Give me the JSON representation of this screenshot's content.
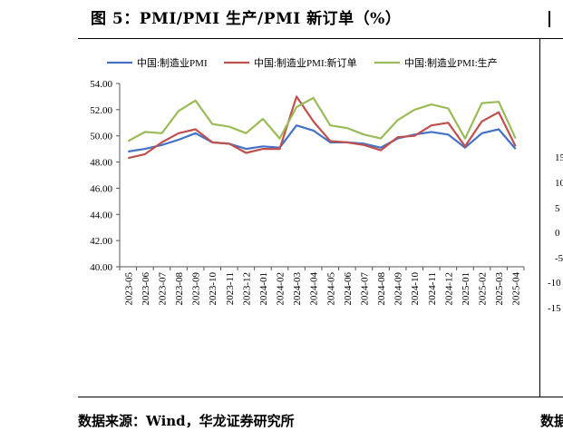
{
  "title": "图 5：PMI/PMI 生产/PMI 新订单（%）",
  "source": "数据来源：Wind，华龙证券研究所",
  "right_partial": {
    "source_fragment": "数据",
    "tick_fragments": [
      "15",
      "10",
      "5",
      "0",
      "-5",
      "-10",
      "-15"
    ]
  },
  "chart_data": {
    "type": "line",
    "categories": [
      "2023-05",
      "2023-06",
      "2023-07",
      "2023-08",
      "2023-09",
      "2023-10",
      "2023-11",
      "2023-12",
      "2024-01",
      "2024-02",
      "2024-03",
      "2024-04",
      "2024-05",
      "2024-06",
      "2024-07",
      "2024-08",
      "2024-09",
      "2024-10",
      "2024-11",
      "2024-12",
      "2025-01",
      "2025-02",
      "2025-03",
      "2025-04"
    ],
    "ylim": [
      40,
      54
    ],
    "yticks": [
      "40.00",
      "42.00",
      "44.00",
      "46.00",
      "48.00",
      "50.00",
      "52.00",
      "54.00"
    ],
    "legend_position": "top",
    "series": [
      {
        "name": "中国:制造业PMI",
        "color": "#4472C4",
        "values": [
          48.8,
          49.0,
          49.3,
          49.7,
          50.2,
          49.5,
          49.4,
          49.0,
          49.2,
          49.1,
          50.8,
          50.4,
          49.5,
          49.5,
          49.4,
          49.1,
          49.8,
          50.1,
          50.3,
          50.1,
          49.1,
          50.2,
          50.5,
          49.0
        ]
      },
      {
        "name": "中国:制造业PMI:新订单",
        "color": "#C0504D",
        "values": [
          48.3,
          48.6,
          49.5,
          50.2,
          50.5,
          49.5,
          49.4,
          48.7,
          49.0,
          49.0,
          53.0,
          51.1,
          49.6,
          49.5,
          49.3,
          48.9,
          49.9,
          50.0,
          50.8,
          51.0,
          49.2,
          51.1,
          51.8,
          49.2
        ]
      },
      {
        "name": "中国:制造业PMI:生产",
        "color": "#9BBB59",
        "values": [
          49.6,
          50.3,
          50.2,
          51.9,
          52.7,
          50.9,
          50.7,
          50.2,
          51.3,
          49.8,
          52.2,
          52.9,
          50.8,
          50.6,
          50.1,
          49.8,
          51.2,
          52.0,
          52.4,
          52.1,
          49.8,
          52.5,
          52.6,
          49.8
        ]
      }
    ]
  }
}
